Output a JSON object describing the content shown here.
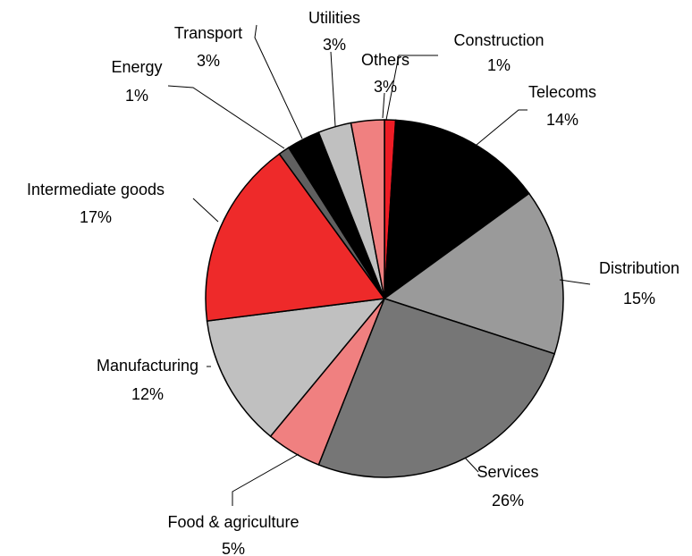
{
  "chart_data": {
    "type": "pie",
    "title": "",
    "start_angle_deg": 0,
    "direction": "clockwise",
    "slices": [
      {
        "label": "Construction",
        "value": 1,
        "display": "1%",
        "color": "#ee1c25"
      },
      {
        "label": "Telecoms",
        "value": 14,
        "display": "14%",
        "color": "#000000"
      },
      {
        "label": "Distribution",
        "value": 15,
        "display": "15%",
        "color": "#9a9a9a"
      },
      {
        "label": "Services",
        "value": 26,
        "display": "26%",
        "color": "#767676"
      },
      {
        "label": "Food & agriculture",
        "value": 5,
        "display": "5%",
        "color": "#f08080"
      },
      {
        "label": "Manufacturing",
        "value": 12,
        "display": "12%",
        "color": "#c0c0c0"
      },
      {
        "label": "Intermediate goods",
        "value": 17,
        "display": "17%",
        "color": "#ee2a2a"
      },
      {
        "label": "Energy",
        "value": 1,
        "display": "1%",
        "color": "#606060"
      },
      {
        "label": "Transport",
        "value": 3,
        "display": "3%",
        "color": "#000000"
      },
      {
        "label": "Utilities",
        "value": 3,
        "display": "3%",
        "color": "#c0c0c0"
      },
      {
        "label": "Others",
        "value": 3,
        "display": "3%",
        "color": "#f08080"
      }
    ]
  }
}
